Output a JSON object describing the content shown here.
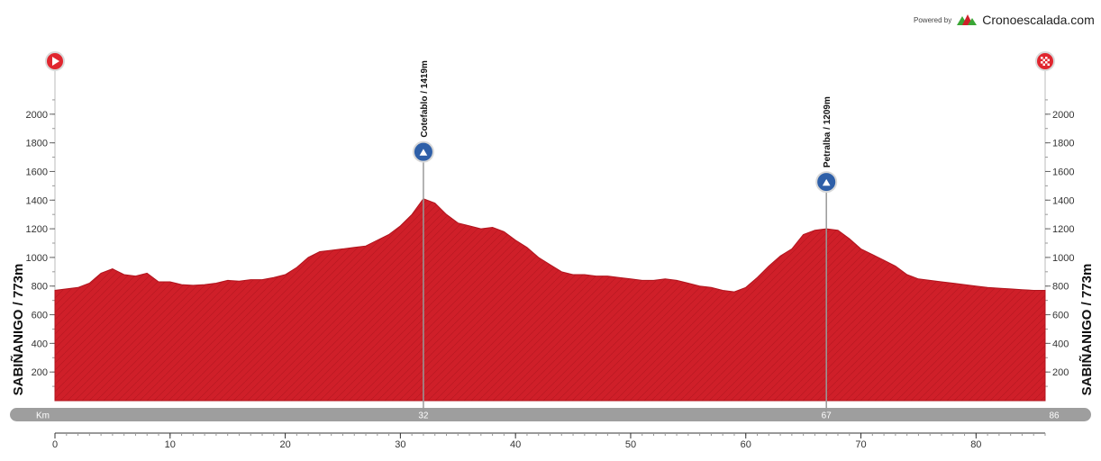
{
  "branding": {
    "powered_by": "Powered by",
    "name": "Cronoescalada.com"
  },
  "chart_data": {
    "type": "area",
    "start_finish_label": "SABIÑANIGO / 773m",
    "bar_label": "Km",
    "y_ticks": [
      200,
      400,
      600,
      800,
      1000,
      1200,
      1400,
      1600,
      1800,
      2000
    ],
    "ylim": [
      0,
      2200
    ],
    "x_ticks": [
      0,
      10,
      20,
      30,
      40,
      50,
      60,
      70,
      80
    ],
    "xlim": [
      0,
      86
    ],
    "series_color": "#d0202a",
    "profile": [
      [
        0,
        770
      ],
      [
        2,
        790
      ],
      [
        3,
        820
      ],
      [
        4,
        890
      ],
      [
        5,
        920
      ],
      [
        6,
        880
      ],
      [
        7,
        870
      ],
      [
        8,
        890
      ],
      [
        9,
        830
      ],
      [
        10,
        830
      ],
      [
        11,
        810
      ],
      [
        12,
        805
      ],
      [
        13,
        810
      ],
      [
        14,
        820
      ],
      [
        15,
        840
      ],
      [
        16,
        835
      ],
      [
        17,
        845
      ],
      [
        18,
        845
      ],
      [
        19,
        860
      ],
      [
        20,
        880
      ],
      [
        21,
        930
      ],
      [
        22,
        1000
      ],
      [
        23,
        1040
      ],
      [
        24,
        1050
      ],
      [
        25,
        1060
      ],
      [
        26,
        1070
      ],
      [
        27,
        1080
      ],
      [
        28,
        1120
      ],
      [
        29,
        1160
      ],
      [
        30,
        1220
      ],
      [
        31,
        1300
      ],
      [
        32,
        1410
      ],
      [
        33,
        1380
      ],
      [
        34,
        1300
      ],
      [
        35,
        1240
      ],
      [
        36,
        1220
      ],
      [
        37,
        1200
      ],
      [
        38,
        1210
      ],
      [
        39,
        1180
      ],
      [
        40,
        1120
      ],
      [
        41,
        1070
      ],
      [
        42,
        1000
      ],
      [
        43,
        950
      ],
      [
        44,
        900
      ],
      [
        45,
        880
      ],
      [
        46,
        880
      ],
      [
        47,
        870
      ],
      [
        48,
        870
      ],
      [
        49,
        860
      ],
      [
        50,
        850
      ],
      [
        51,
        840
      ],
      [
        52,
        840
      ],
      [
        53,
        850
      ],
      [
        54,
        840
      ],
      [
        55,
        820
      ],
      [
        56,
        800
      ],
      [
        57,
        790
      ],
      [
        58,
        770
      ],
      [
        59,
        760
      ],
      [
        60,
        790
      ],
      [
        61,
        860
      ],
      [
        62,
        940
      ],
      [
        63,
        1010
      ],
      [
        64,
        1060
      ],
      [
        65,
        1160
      ],
      [
        66,
        1190
      ],
      [
        67,
        1200
      ],
      [
        68,
        1190
      ],
      [
        69,
        1130
      ],
      [
        70,
        1060
      ],
      [
        71,
        1020
      ],
      [
        72,
        980
      ],
      [
        73,
        940
      ],
      [
        74,
        880
      ],
      [
        75,
        850
      ],
      [
        76,
        840
      ],
      [
        77,
        830
      ],
      [
        78,
        820
      ],
      [
        79,
        810
      ],
      [
        80,
        800
      ],
      [
        81,
        790
      ],
      [
        82,
        785
      ],
      [
        83,
        780
      ],
      [
        84,
        775
      ],
      [
        85,
        770
      ],
      [
        86,
        770
      ]
    ],
    "climbs": [
      {
        "label": "Cotefablo / 1419m",
        "km": 32,
        "km_label": "32"
      },
      {
        "label": "Petralba / 1209m",
        "km": 67,
        "km_label": "67"
      }
    ],
    "end_km_label": "86"
  }
}
